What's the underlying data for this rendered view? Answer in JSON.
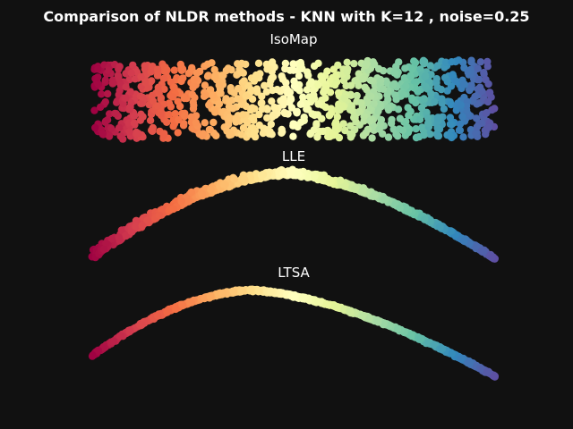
{
  "figure": {
    "title": "Comparison of NLDR methods - KNN with K=12 , noise=0.25",
    "background": "#111111",
    "text_color": "#ffffff",
    "colormap": "Spectral"
  },
  "chart_data": [
    {
      "type": "scatter",
      "title": "IsoMap",
      "axes_visible": false,
      "color_by": "position along manifold (0 = red, 1 = purple)",
      "shape": "filled rectangle (unrolled manifold)",
      "x_range": [
        0,
        1
      ],
      "y_range": [
        -1,
        1
      ],
      "sample_points": [
        {
          "t": 0.0,
          "y": 0.0
        },
        {
          "t": 0.1,
          "y": 0.4
        },
        {
          "t": 0.25,
          "y": -0.5
        },
        {
          "t": 0.4,
          "y": 0.2
        },
        {
          "t": 0.55,
          "y": -0.3
        },
        {
          "t": 0.7,
          "y": 0.6
        },
        {
          "t": 0.85,
          "y": -0.2
        },
        {
          "t": 1.0,
          "y": 0.1
        }
      ]
    },
    {
      "type": "scatter",
      "title": "LLE",
      "axes_visible": false,
      "color_by": "position along manifold (0 = red, 1 = purple)",
      "shape": "arched band, wider on the left",
      "x_range": [
        0,
        1
      ],
      "sample_points": [
        {
          "t": 0.0,
          "y": -1.0
        },
        {
          "t": 0.2,
          "y": 0.2
        },
        {
          "t": 0.4,
          "y": 0.8
        },
        {
          "t": 0.5,
          "y": 0.95
        },
        {
          "t": 0.7,
          "y": 0.55
        },
        {
          "t": 0.9,
          "y": -0.6
        },
        {
          "t": 1.0,
          "y": -1.0
        }
      ]
    },
    {
      "type": "scatter",
      "title": "LTSA",
      "axes_visible": false,
      "color_by": "position along manifold (0 = red, 1 = purple)",
      "shape": "thin arched curve",
      "x_range": [
        0,
        1
      ],
      "sample_points": [
        {
          "t": 0.0,
          "y": -0.75
        },
        {
          "t": 0.2,
          "y": 0.6
        },
        {
          "t": 0.4,
          "y": 1.0
        },
        {
          "t": 0.6,
          "y": 0.85
        },
        {
          "t": 0.8,
          "y": 0.15
        },
        {
          "t": 1.0,
          "y": -1.0
        }
      ]
    }
  ]
}
